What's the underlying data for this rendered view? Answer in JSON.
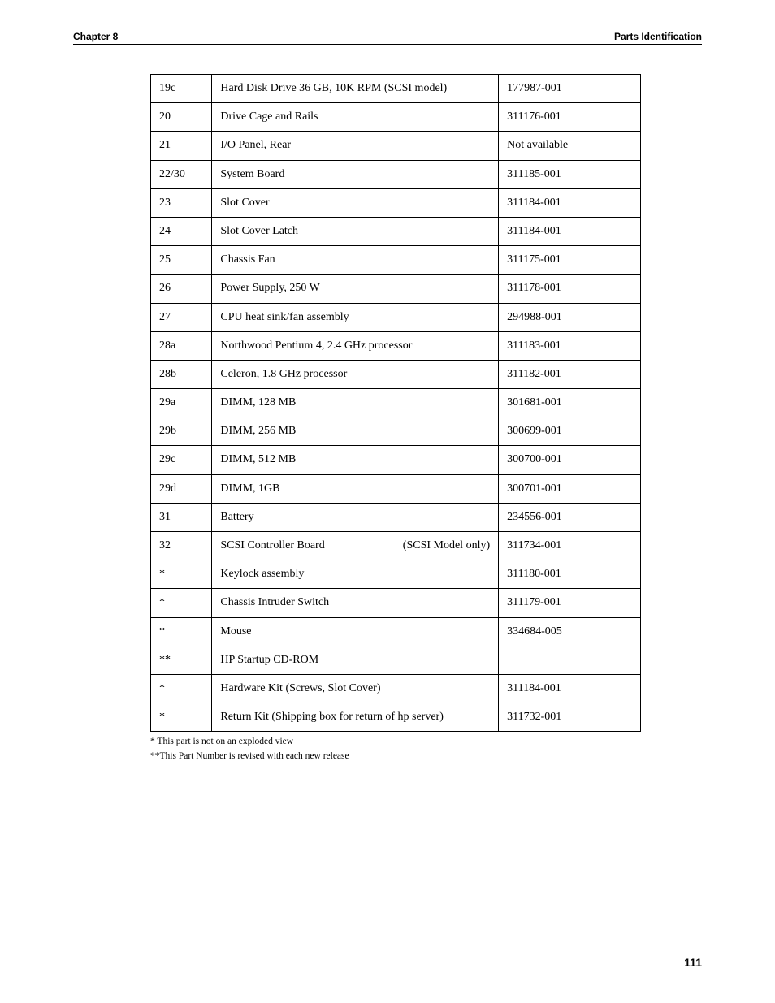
{
  "header": {
    "left": "Chapter 8",
    "right": "Parts Identification"
  },
  "parts_table": {
    "columns": [
      "ref",
      "description",
      "part_number"
    ],
    "rows": [
      {
        "ref": "19c",
        "description": "Hard Disk Drive 36 GB, 10K RPM (SCSI model)",
        "part_number": "177987-001"
      },
      {
        "ref": "20",
        "description": "Drive Cage and Rails",
        "part_number": "311176-001"
      },
      {
        "ref": "21",
        "description": "I/O Panel, Rear",
        "part_number": "Not available"
      },
      {
        "ref": "22/30",
        "description": "System Board",
        "part_number": "311185-001"
      },
      {
        "ref": "23",
        "description": "Slot Cover",
        "part_number": "311184-001"
      },
      {
        "ref": "24",
        "description": "Slot Cover Latch",
        "part_number": "311184-001"
      },
      {
        "ref": "25",
        "description": "Chassis Fan",
        "part_number": "311175-001"
      },
      {
        "ref": "26",
        "description": "Power Supply, 250 W",
        "part_number": "311178-001"
      },
      {
        "ref": "27",
        "description": "CPU heat sink/fan assembly",
        "part_number": "294988-001"
      },
      {
        "ref": "28a",
        "description": "Northwood Pentium 4, 2.4 GHz processor",
        "part_number": "311183-001"
      },
      {
        "ref": "28b",
        "description": "Celeron, 1.8 GHz processor",
        "part_number": "311182-001"
      },
      {
        "ref": "29a",
        "description": "DIMM, 128 MB",
        "part_number": "301681-001"
      },
      {
        "ref": "29b",
        "description": "DIMM, 256 MB",
        "part_number": "300699-001"
      },
      {
        "ref": "29c",
        "description": "DIMM, 512 MB",
        "part_number": "300700-001"
      },
      {
        "ref": "29d",
        "description": "DIMM, 1GB",
        "part_number": "300701-001"
      },
      {
        "ref": "31",
        "description": "Battery",
        "part_number": "234556-001"
      },
      {
        "ref": "32",
        "description_left": "SCSI Controller Board",
        "description_right": "(SCSI Model only)",
        "part_number": "311734-001"
      },
      {
        "ref": "*",
        "description": "Keylock assembly",
        "part_number": "311180-001"
      },
      {
        "ref": "*",
        "description": "Chassis Intruder Switch",
        "part_number": "311179-001"
      },
      {
        "ref": "*",
        "description": "Mouse",
        "part_number": "334684-005"
      },
      {
        "ref": "**",
        "description": "HP Startup CD-ROM",
        "part_number": ""
      },
      {
        "ref": "*",
        "description": "Hardware Kit (Screws, Slot Cover)",
        "part_number": "311184-001"
      },
      {
        "ref": "*",
        "description": "Return Kit (Shipping box for return of hp server)",
        "part_number": "311732-001"
      }
    ]
  },
  "notes": {
    "line1": "* This part is not on an exploded view",
    "line2": "**This Part Number is revised with each new release"
  },
  "footer": {
    "page_number": "111"
  }
}
